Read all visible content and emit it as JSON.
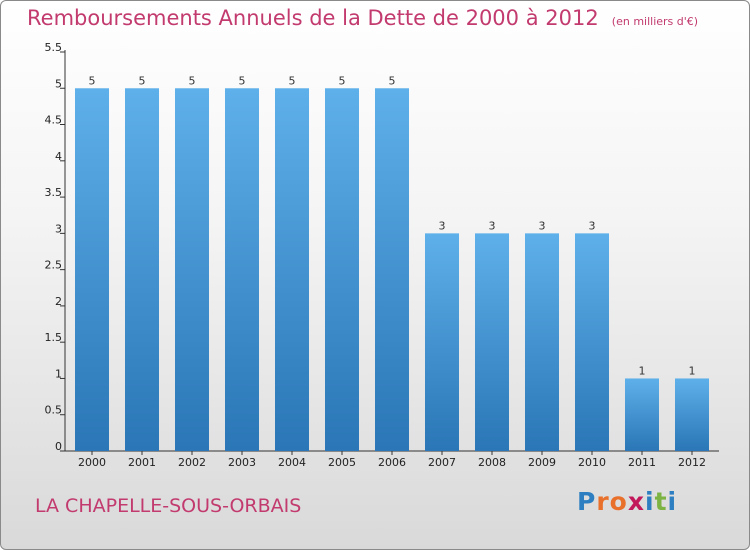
{
  "title": "Remboursements Annuels de la Dette de 2000 à 2012",
  "unit_note": "(en milliers d'€)",
  "commune": "LA CHAPELLE-SOUS-ORBAIS",
  "logo": {
    "text": "Proxiti",
    "letters": [
      "P",
      "r",
      "o",
      "x",
      "i",
      "t",
      "i"
    ],
    "colors": [
      "#2e7fc1",
      "#e8702a",
      "#e8702a",
      "#c2185b",
      "#2e7fc1",
      "#7cb342",
      "#2e7fc1"
    ]
  },
  "colors": {
    "accent": "#c23a6e",
    "bar_top": "#5eb0ea",
    "bar_bottom": "#2a76b6"
  },
  "chart_data": {
    "type": "bar",
    "title": "Remboursements Annuels de la Dette de 2000 à 2012",
    "ylabel": "en milliers d'€",
    "categories": [
      "2000",
      "2001",
      "2002",
      "2003",
      "2004",
      "2005",
      "2006",
      "2007",
      "2008",
      "2009",
      "2010",
      "2011",
      "2012"
    ],
    "values": [
      5,
      5,
      5,
      5,
      5,
      5,
      5,
      3,
      3,
      3,
      3,
      1,
      1
    ],
    "value_labels": [
      "5",
      "5",
      "5",
      "5",
      "5",
      "5",
      "5",
      "3",
      "3",
      "3",
      "3",
      "1",
      "1"
    ],
    "ylim": [
      0,
      5.5
    ],
    "yticks": [
      "0",
      "0.5",
      "1",
      "1.5",
      "2",
      "2.5",
      "3",
      "3.5",
      "4",
      "4.5",
      "5",
      "5.5"
    ],
    "grid": false
  }
}
